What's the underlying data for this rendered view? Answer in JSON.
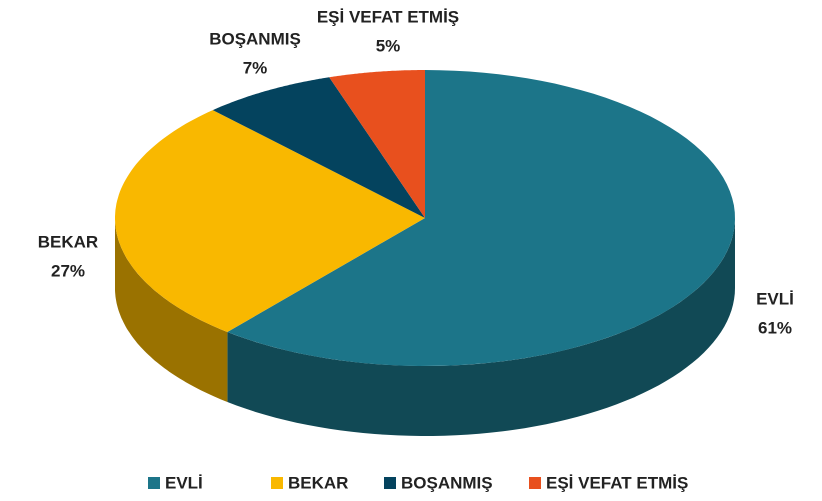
{
  "chart_data": {
    "type": "pie",
    "categories": [
      "EVLİ",
      "BEKAR",
      "BOŞANMIŞ",
      "EŞİ VEFAT ETMİŞ"
    ],
    "values": [
      61,
      27,
      7,
      5
    ],
    "value_labels": [
      "61%",
      "27%",
      "7%",
      "5%"
    ],
    "colors": [
      "#1c7589",
      "#f9b800",
      "#04435e",
      "#e8501e"
    ],
    "legend": "bottom"
  }
}
